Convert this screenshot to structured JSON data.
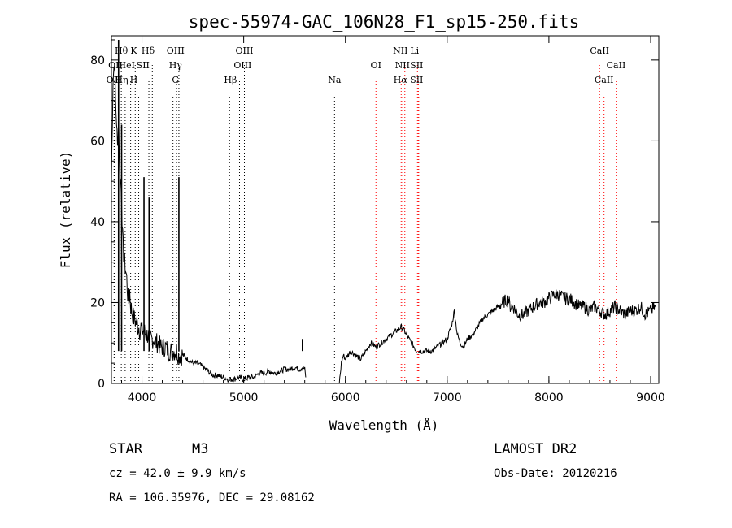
{
  "chart_data": {
    "type": "line",
    "title": "spec-55974-GAC_106N28_F1_sp15-250.fits",
    "xlabel": "Wavelength (Å)",
    "ylabel": "Flux (relative)",
    "xlim": [
      3700,
      9080
    ],
    "ylim": [
      0,
      86
    ],
    "xticks": [
      4000,
      5000,
      6000,
      7000,
      8000,
      9000
    ],
    "yticks": [
      0,
      20,
      40,
      60,
      80
    ],
    "grid": false,
    "series": [
      {
        "x": [
          3700,
          3715,
          3730,
          3740,
          3750,
          3760,
          3770,
          3780,
          3790,
          3800,
          3810,
          3820,
          3830,
          3840,
          3850,
          3860,
          3870,
          3880,
          3890,
          3900,
          3910,
          3920,
          3930,
          3940,
          3950,
          3960,
          3970,
          3980,
          3990,
          4000,
          4020,
          4040,
          4060,
          4080,
          4100,
          4120,
          4140,
          4160,
          4180,
          4200,
          4230,
          4260,
          4290,
          4320,
          4340,
          4360,
          4380,
          4400,
          4450,
          4500,
          4550,
          4600,
          4650,
          4700,
          4750,
          4800,
          4850,
          4900,
          4950,
          5000,
          5050,
          5100,
          5150,
          5200,
          5250,
          5300,
          5350,
          5400,
          5450,
          5500,
          5550,
          5580,
          5600,
          5610
        ],
        "y": [
          50,
          75,
          80,
          70,
          65,
          58,
          66,
          55,
          50,
          46,
          36,
          32,
          30,
          28,
          26,
          22,
          20,
          23,
          19,
          18,
          17,
          16,
          16,
          15,
          15,
          14,
          14,
          13,
          14,
          13,
          13,
          12,
          12,
          11,
          11,
          11,
          10,
          10,
          9,
          9,
          9,
          8,
          8,
          8,
          8,
          7,
          7,
          7,
          6,
          5,
          5,
          4,
          3,
          2,
          2,
          1.5,
          1,
          1,
          1.5,
          1,
          1.5,
          1.5,
          2.5,
          2.5,
          3,
          2.5,
          3,
          3.5,
          3.5,
          4,
          3.5,
          4,
          3.5,
          1.5
        ],
        "peaks": [
          [
            3770,
            85
          ],
          [
            3800,
            64
          ],
          [
            4020,
            51
          ],
          [
            4070,
            46
          ],
          [
            4363,
            51
          ],
          [
            5577,
            11
          ]
        ]
      },
      {
        "x": [
          5940,
          5960,
          5980,
          6000,
          6050,
          6100,
          6150,
          6200,
          6250,
          6300,
          6350,
          6400,
          6450,
          6500,
          6550,
          6580,
          6600,
          6650,
          6700,
          6750,
          6800,
          6850,
          6900,
          6950,
          7000,
          7050,
          7070,
          7100,
          7130,
          7160,
          7200,
          7250,
          7300,
          7350,
          7400,
          7450,
          7500,
          7550,
          7600,
          7620,
          7650,
          7700,
          7750,
          7800,
          7850,
          7900,
          7950,
          8000,
          8050,
          8100,
          8150,
          8200,
          8250,
          8300,
          8350,
          8400,
          8450,
          8500,
          8550,
          8600,
          8650,
          8700,
          8750,
          8800,
          8850,
          8900,
          8950,
          9000,
          9050
        ],
        "y": [
          0,
          5,
          7,
          6,
          8,
          7,
          6,
          8,
          10,
          9,
          10,
          11,
          12,
          13,
          14,
          13,
          12,
          10,
          8,
          8,
          8,
          8,
          9,
          10,
          11,
          15,
          18,
          12,
          10,
          9,
          11,
          12,
          14,
          16,
          17,
          18,
          19,
          20,
          21,
          19,
          19,
          17,
          17,
          18,
          19,
          20,
          20,
          21,
          22,
          22,
          21,
          21,
          20,
          19,
          19,
          18,
          19,
          18,
          17,
          18,
          19,
          18,
          17,
          18,
          18,
          19,
          17,
          18,
          19
        ]
      }
    ],
    "line_markers": [
      {
        "label": "Hθ",
        "x": 3797,
        "row": 1,
        "label_x": 3797
      },
      {
        "label": "K",
        "x": 3934,
        "row": 1,
        "label_x": 3920
      },
      {
        "label": "Hδ",
        "x": 4102,
        "row": 1,
        "label_x": 4060
      },
      {
        "label": "OIII",
        "x": 4363,
        "row": 1,
        "label_x": 4330
      },
      {
        "label": "OIII",
        "x": 5007,
        "row": 1,
        "label_x": 5007
      },
      {
        "label": "NII",
        "x": 6584,
        "row": 1,
        "label_x": 6540
      },
      {
        "label": "Li",
        "x": 6708,
        "row": 1,
        "label_x": 6680
      },
      {
        "label": "CaII",
        "x": 8498,
        "row": 1,
        "label_x": 8498
      },
      {
        "label": "OII",
        "x": 3727,
        "row": 2,
        "label_x": 3740
      },
      {
        "label": "HeI",
        "x": 3889,
        "row": 2,
        "label_x": 3850
      },
      {
        "label": "SII",
        "x": 4068,
        "row": 2,
        "label_x": 4010
      },
      {
        "label": "Hγ",
        "x": 4340,
        "row": 2,
        "label_x": 4330
      },
      {
        "label": "OIII",
        "x": 4959,
        "row": 2,
        "label_x": 4990
      },
      {
        "label": "OI",
        "x": 6300,
        "row": 2,
        "label_x": 6300
      },
      {
        "label": "NII",
        "x": 6548,
        "row": 2,
        "label_x": 6560
      },
      {
        "label": "SII",
        "x": 6717,
        "row": 2,
        "label_x": 6700
      },
      {
        "label": "CaII",
        "x": 8662,
        "row": 2,
        "label_x": 8660
      },
      {
        "label": "OII",
        "x": 3727,
        "row": 3,
        "label_x": 3720
      },
      {
        "label": "Hη",
        "x": 3835,
        "row": 3,
        "label_x": 3800
      },
      {
        "label": "H",
        "x": 3968,
        "row": 3,
        "label_x": 3920
      },
      {
        "label": "G",
        "x": 4305,
        "row": 3,
        "label_x": 4330
      },
      {
        "label": "Hβ",
        "x": 4861,
        "row": 3,
        "label_x": 4870
      },
      {
        "label": "Na",
        "x": 5893,
        "row": 3,
        "label_x": 5893
      },
      {
        "label": "Hα",
        "x": 6563,
        "row": 3,
        "label_x": 6540
      },
      {
        "label": "SII",
        "x": 6731,
        "row": 3,
        "label_x": 6700
      },
      {
        "label": "CaII",
        "x": 8542,
        "row": 3,
        "label_x": 8542
      }
    ],
    "marker_colors": {
      "emission": "#ff0000",
      "absorption": "#000000"
    }
  },
  "info": {
    "object_type": "STAR",
    "subclass": "M3",
    "survey": "LAMOST DR2",
    "cz": "cz = 42.0 ± 9.9 km/s",
    "obs_date": "Obs-Date: 20120216",
    "coords": "RA = 106.35976, DEC =  29.08162"
  }
}
